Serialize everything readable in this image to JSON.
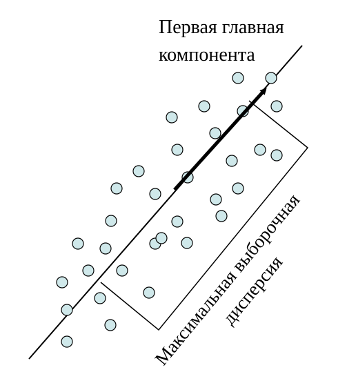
{
  "title": {
    "line1": "Первая главная",
    "line2": "компонента"
  },
  "rotated_label": {
    "line1": "Максимальная выборочная",
    "line2": "дисперсия"
  },
  "colors": {
    "point_fill": "#cfe8ea",
    "point_stroke": "#000000",
    "line": "#000000",
    "background": "#ffffff"
  },
  "elements": {
    "principal_axis": "line",
    "principal_vector": "arrow",
    "variance_box": "rectangle"
  }
}
